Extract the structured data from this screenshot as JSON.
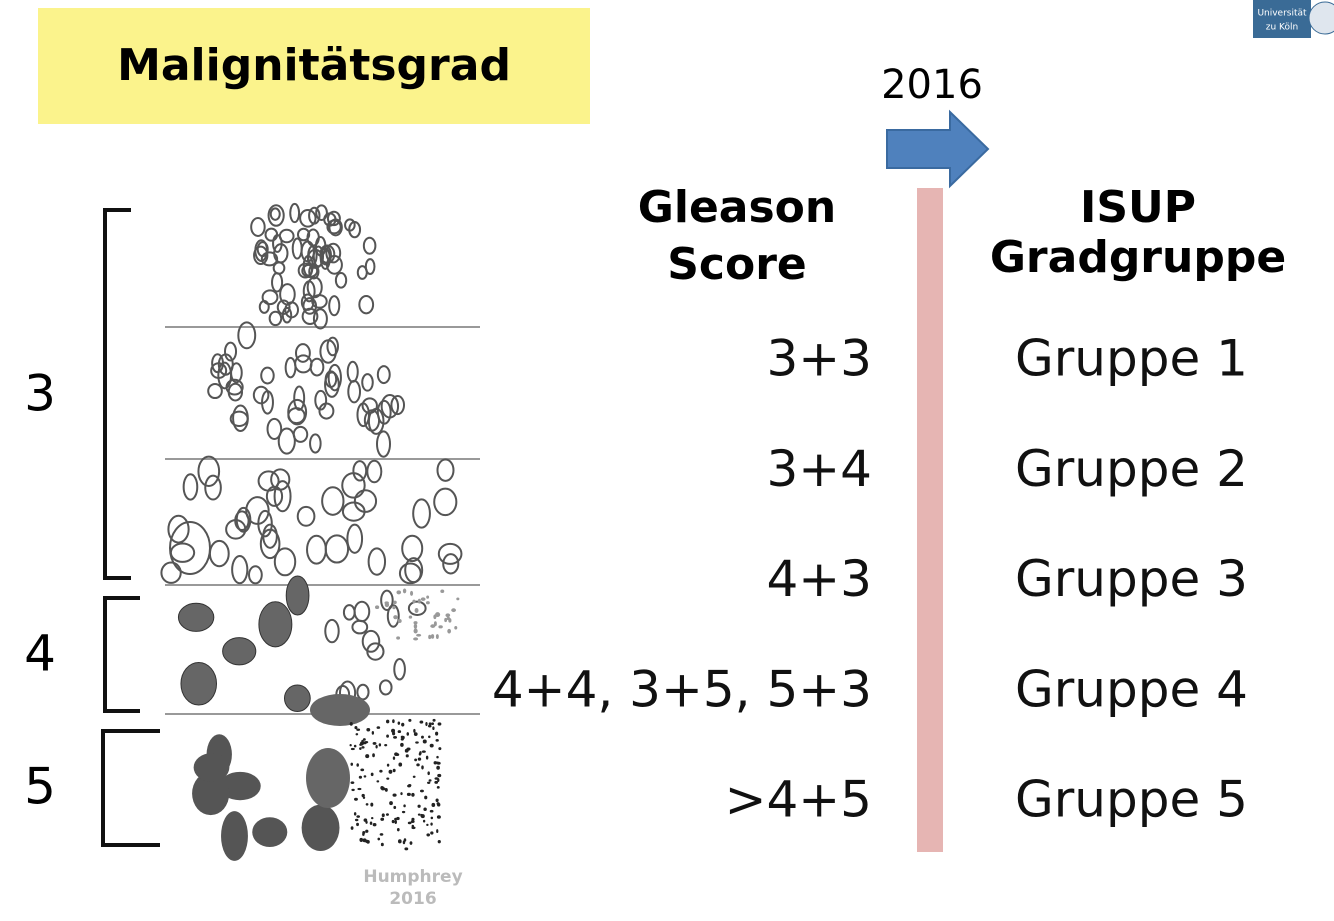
{
  "header": {
    "title": "Malignitätsgrad",
    "logo": [
      "Universität",
      "zu Köln"
    ]
  },
  "arrow_label": "2016",
  "columns": {
    "left": [
      "Gleason",
      "Score"
    ],
    "right": [
      "ISUP",
      "Gradgruppe"
    ]
  },
  "rows": [
    {
      "score": "3+3",
      "group": "Gruppe 1"
    },
    {
      "score": "3+4",
      "group": "Gruppe 2"
    },
    {
      "score": "4+3",
      "group": "Gruppe 3"
    },
    {
      "score": "4+4, 3+5, 5+3",
      "group": "Gruppe 4"
    },
    {
      "score": ">4+5",
      "group": "Gruppe 5"
    }
  ],
  "brackets": [
    "3",
    "4",
    "5"
  ],
  "credit": [
    "Humphrey",
    "2016"
  ]
}
